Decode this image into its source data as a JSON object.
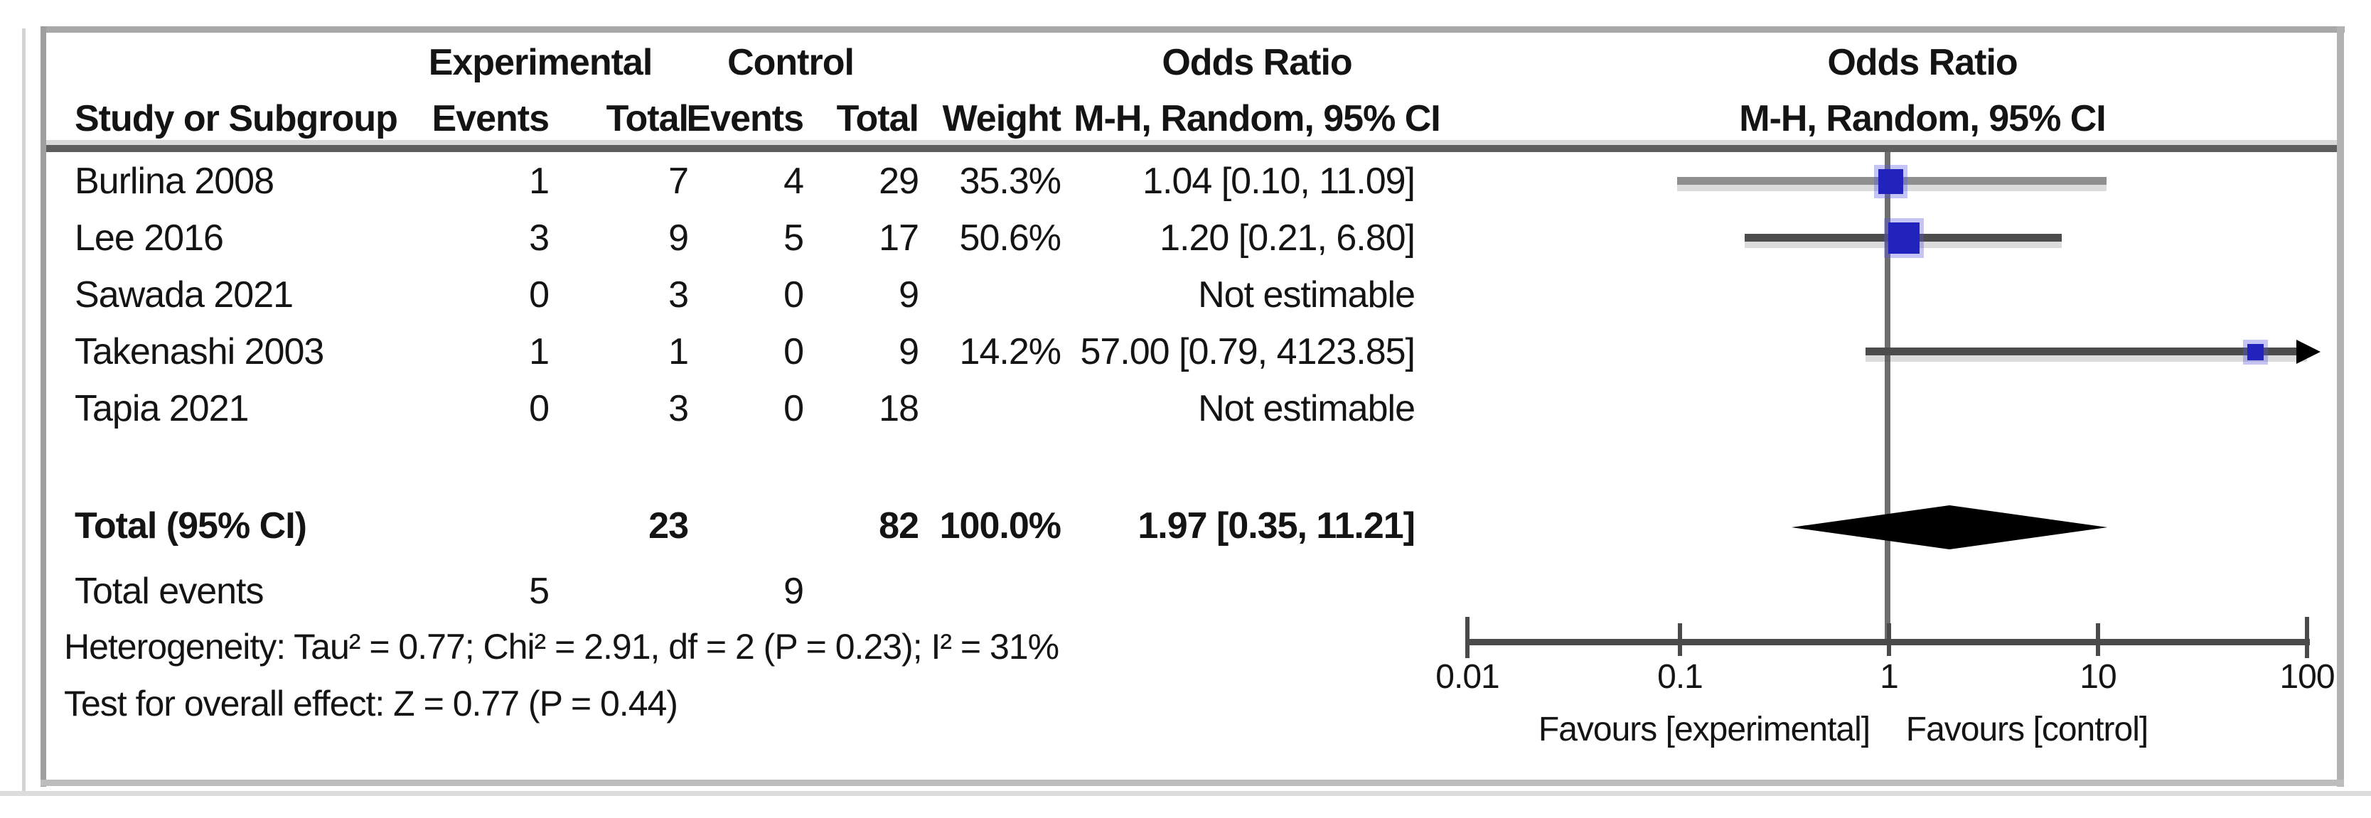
{
  "table": {
    "group_headers": {
      "experimental": "Experimental",
      "control": "Control",
      "odds_ratio_left": "Odds Ratio",
      "odds_ratio_right": "Odds Ratio"
    },
    "col_headers": {
      "study": "Study or Subgroup",
      "exp_events": "Events",
      "exp_total": "Total",
      "ctrl_events": "Events",
      "ctrl_total": "Total",
      "weight": "Weight",
      "mh_left": "M-H, Random, 95% CI",
      "mh_right": "M-H, Random, 95% CI"
    },
    "rows": [
      {
        "study": "Burlina 2008",
        "exp_events": "1",
        "exp_total": "7",
        "ctrl_events": "4",
        "ctrl_total": "29",
        "weight": "35.3%",
        "or_ci": "1.04 [0.10, 11.09]"
      },
      {
        "study": "Lee 2016",
        "exp_events": "3",
        "exp_total": "9",
        "ctrl_events": "5",
        "ctrl_total": "17",
        "weight": "50.6%",
        "or_ci": "1.20 [0.21, 6.80]"
      },
      {
        "study": "Sawada 2021",
        "exp_events": "0",
        "exp_total": "3",
        "ctrl_events": "0",
        "ctrl_total": "9",
        "weight": "",
        "or_ci": "Not estimable"
      },
      {
        "study": "Takenashi 2003",
        "exp_events": "1",
        "exp_total": "1",
        "ctrl_events": "0",
        "ctrl_total": "9",
        "weight": "14.2%",
        "or_ci": "57.00 [0.79, 4123.85]"
      },
      {
        "study": "Tapia 2021",
        "exp_events": "0",
        "exp_total": "3",
        "ctrl_events": "0",
        "ctrl_total": "18",
        "weight": "",
        "or_ci": "Not estimable"
      }
    ],
    "total_row": {
      "label": "Total (95% CI)",
      "exp_total": "23",
      "ctrl_total": "82",
      "weight": "100.0%",
      "or_ci": "1.97 [0.35, 11.21]"
    },
    "total_events": {
      "label": "Total events",
      "exp": "5",
      "ctrl": "9"
    },
    "heterogeneity": "Heterogeneity: Tau² = 0.77; Chi² = 2.91, df = 2 (P = 0.23); I² = 31%",
    "overall_effect": "Test for overall effect: Z = 0.77 (P = 0.44)"
  },
  "chart_data": {
    "type": "forest",
    "effect_measure": "Odds Ratio, M-H, Random, 95% CI",
    "x_scale": "log10",
    "x_range": [
      0.01,
      100
    ],
    "x_tick_labels": [
      "0.01",
      "0.1",
      "1",
      "10",
      "100"
    ],
    "x_tick_values": [
      0.01,
      0.1,
      1,
      10,
      100
    ],
    "axis_labels": {
      "left": "Favours [experimental]",
      "right": "Favours [control]"
    },
    "studies": [
      {
        "label": "Burlina 2008",
        "or": 1.04,
        "ci_low": 0.1,
        "ci_high": 11.09,
        "weight_pct": 35.3
      },
      {
        "label": "Lee 2016",
        "or": 1.2,
        "ci_low": 0.21,
        "ci_high": 6.8,
        "weight_pct": 50.6
      },
      {
        "label": "Sawada 2021",
        "or": null,
        "ci_low": null,
        "ci_high": null,
        "weight_pct": null
      },
      {
        "label": "Takenashi 2003",
        "or": 57.0,
        "ci_low": 0.79,
        "ci_high": 4123.85,
        "weight_pct": 14.2
      },
      {
        "label": "Tapia 2021",
        "or": null,
        "ci_low": null,
        "ci_high": null,
        "weight_pct": null
      }
    ],
    "total": {
      "label": "Total (95% CI)",
      "or": 1.97,
      "ci_low": 0.35,
      "ci_high": 11.21
    },
    "colors": {
      "square": "#2222bd",
      "diamond": "#000000",
      "ci_line": "#4c4c4c"
    }
  }
}
